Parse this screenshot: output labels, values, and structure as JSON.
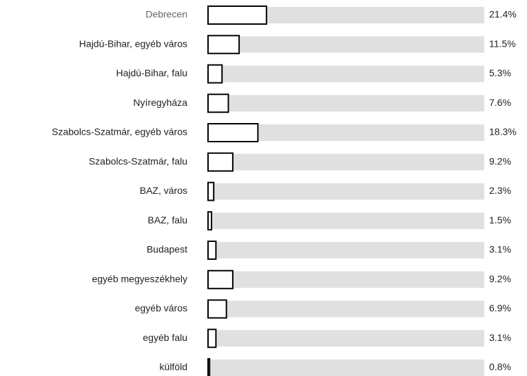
{
  "chart_data": {
    "type": "bar",
    "orientation": "horizontal",
    "categories": [
      "Debrecen",
      "Hajdú-Bihar, egyéb város",
      "Hajdú-Bihar, falu",
      "Nyíregyháza",
      "Szabolcs-Szatmár, egyéb város",
      "Szabolcs-Szatmár, falu",
      "BAZ, város",
      "BAZ, falu",
      "Budapest",
      "egyéb megyeszékhely",
      "egyéb város",
      "egyéb falu",
      "külföld"
    ],
    "values": [
      21.4,
      11.5,
      5.3,
      7.6,
      18.3,
      9.2,
      2.3,
      1.5,
      3.1,
      9.2,
      6.9,
      3.1,
      0.8
    ],
    "value_labels": [
      "21.4%",
      "11.5%",
      "5.3%",
      "7.6%",
      "18.3%",
      "9.2%",
      "2.3%",
      "1.5%",
      "3.1%",
      "9.2%",
      "6.9%",
      "3.1%",
      "0.8%"
    ],
    "xlim": [
      0,
      100
    ],
    "color": "#ffffff",
    "bar_stroke": "#000000",
    "track_color": "#e0e0e0"
  }
}
